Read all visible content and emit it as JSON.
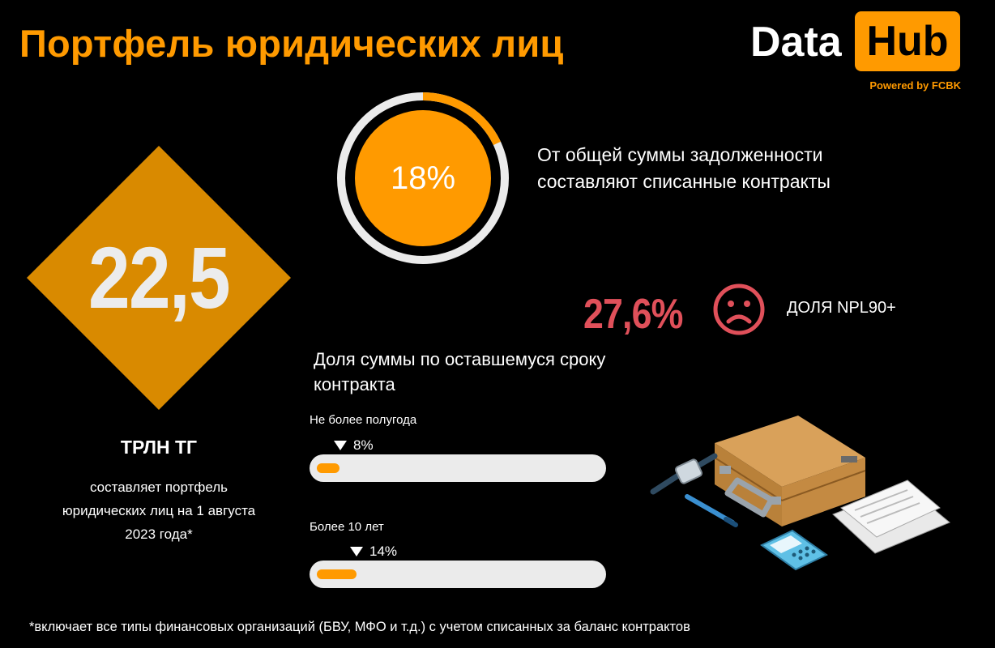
{
  "title": "Портфель юридических лиц",
  "logo": {
    "data_text": "Data",
    "hub_text": "Hub",
    "powered_by": "Powered by FCBK"
  },
  "portfolio": {
    "value": "22,5",
    "unit": "ТРЛН ТГ",
    "description": "составляет портфель юридических лиц на 1 августа 2023 года*"
  },
  "written_off": {
    "percent_label": "18%",
    "share": 0.18,
    "description": "От общей суммы задолженности составляют списанные контракты"
  },
  "npl": {
    "value": "27,6%",
    "label": "ДОЛЯ NPL90+"
  },
  "remaining_term": {
    "heading": "Доля суммы по оставшемуся сроку контракта",
    "bars": [
      {
        "label": "Не более полугода",
        "value_label": "8%",
        "share": 0.08
      },
      {
        "label": "Более 10 лет",
        "value_label": "14%",
        "share": 0.14
      }
    ]
  },
  "footnote": "*включает все типы финансовых организаций (БВУ, МФО и т.д.) с учетом списанных за баланс контрактов",
  "colors": {
    "accent": "#ff9a00",
    "diamond": "#d98a00",
    "npl_red": "#e0505a",
    "background": "#000000"
  },
  "icons": {
    "sad_face": "sad-face-icon",
    "illustration": "briefcase-illustration"
  }
}
